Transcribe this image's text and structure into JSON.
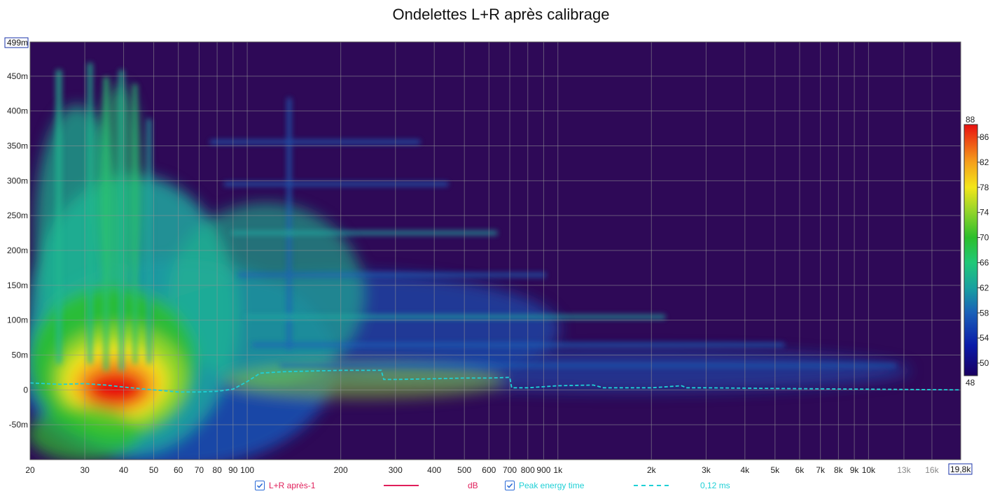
{
  "chart_data": {
    "type": "heatmap",
    "title": "Ondelettes L+R après calibrage",
    "x_scale": "log",
    "x_range": [
      20,
      19800
    ],
    "y_range": [
      -100,
      499
    ],
    "x_ticks": [
      "20",
      "30",
      "40",
      "50",
      "60",
      "70",
      "80",
      "90",
      "100",
      "200",
      "300",
      "400",
      "500",
      "600",
      "700",
      "800",
      "900",
      "1k",
      "2k",
      "3k",
      "4k",
      "5k",
      "6k",
      "7k",
      "8k",
      "9k",
      "10k",
      "13k",
      "16k"
    ],
    "x_tick_values": [
      20,
      30,
      40,
      50,
      60,
      70,
      80,
      90,
      100,
      200,
      300,
      400,
      500,
      600,
      700,
      800,
      900,
      1000,
      2000,
      3000,
      4000,
      5000,
      6000,
      7000,
      8000,
      9000,
      10000,
      13000,
      16000
    ],
    "x_end_label": "19,8k",
    "y_ticks": [
      "-50m",
      "0",
      "50m",
      "100m",
      "150m",
      "200m",
      "250m",
      "300m",
      "350m",
      "400m",
      "450m"
    ],
    "y_tick_values": [
      -50,
      0,
      50,
      100,
      150,
      200,
      250,
      300,
      350,
      400,
      450
    ],
    "y_top_label": "499m",
    "colorbar": {
      "min": 48,
      "max": 88,
      "ticks": [
        50,
        54,
        58,
        62,
        66,
        70,
        74,
        78,
        82,
        86
      ],
      "min_label": "48",
      "max_label": "88"
    },
    "series": [
      {
        "name": "Peak energy time",
        "x": [
          20,
          25,
          30,
          35,
          40,
          50,
          60,
          70,
          80,
          90,
          100,
          110,
          130,
          160,
          200,
          270,
          275,
          300,
          400,
          500,
          600,
          700,
          710,
          720,
          800,
          1000,
          1300,
          1400,
          2000,
          2500,
          2600,
          3000,
          5000,
          10000,
          19800
        ],
        "y": [
          10,
          8,
          9,
          7,
          4,
          0,
          -3,
          -3,
          -2,
          1,
          12,
          24,
          26,
          27,
          28,
          28,
          15,
          15,
          16,
          17,
          17,
          18,
          3,
          3,
          3,
          6,
          7,
          3,
          3,
          6,
          3,
          3,
          2,
          1,
          0
        ],
        "color": "#1fd0d6"
      }
    ]
  },
  "legend": {
    "item1_label": "L+R après-1",
    "item1_unit": "dB",
    "item1_color": "#e01e5a",
    "item2_label": "Peak energy time",
    "item2_value": "0,12 ms",
    "item2_color": "#1fd0d6"
  }
}
